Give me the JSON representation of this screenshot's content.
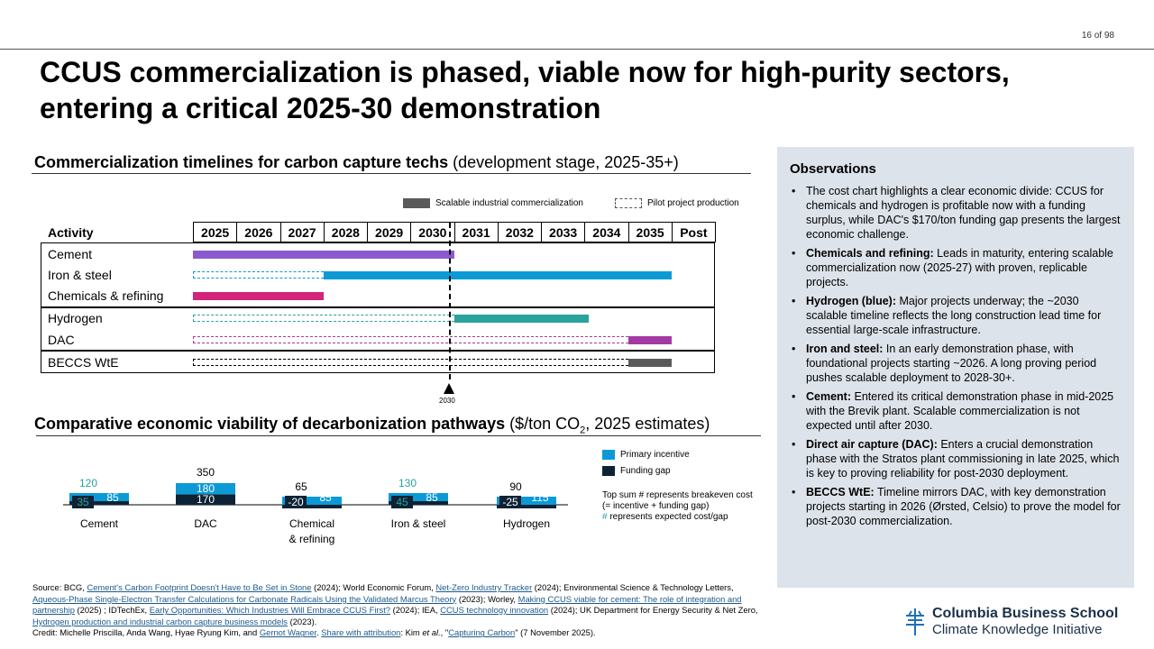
{
  "page": {
    "number": "16 of 98"
  },
  "title": "CCUS commercialization is phased, viable now for high-purity sectors, entering a critical 2025-30 demonstration",
  "timeline": {
    "heading": "Commercialization timelines for carbon capture techs",
    "subheading": " (development stage, 2025-35+)",
    "legend": {
      "scalable": "Scalable industrial commercialization",
      "pilot": "Pilot project production"
    },
    "activity_header": "Activity",
    "years": [
      "2025",
      "2026",
      "2027",
      "2028",
      "2029",
      "2030",
      "2031",
      "2032",
      "2033",
      "2034",
      "2035",
      "Post"
    ],
    "rows": [
      {
        "label": "Cement",
        "color": "#8c5ad0",
        "pilot": null,
        "scalable": [
          2025,
          2031
        ]
      },
      {
        "label": "Iron & steel",
        "color": "#0c9ad6",
        "pilot": [
          2025,
          2028
        ],
        "scalable": [
          2028,
          2036
        ]
      },
      {
        "label": "Chemicals & refining",
        "color": "#d4237a",
        "pilot": null,
        "scalable": [
          2025,
          2028
        ]
      },
      {
        "label": "Hydrogen",
        "color": "#2aa39a",
        "pilot": [
          2025,
          2031
        ],
        "scalable": [
          2031,
          2034.1
        ]
      },
      {
        "label": "DAC",
        "color": "#a33aa3",
        "pilot": [
          2025,
          2035
        ],
        "scalable": [
          2035,
          2036
        ]
      },
      {
        "label": "BECCS WtE",
        "color": "#5a5a5a",
        "pilot": [
          2025,
          2035
        ],
        "scalable": [
          2035,
          2036
        ]
      }
    ],
    "marker_label": "2030"
  },
  "economics": {
    "heading": "Comparative economic viability of decarbonization pathways",
    "subheading_pre": " ($/ton CO",
    "subheading_sub": "2",
    "subheading_post": ", 2025 estimates)",
    "legend": {
      "primary": "Primary incentive",
      "gap": "Funding gap"
    },
    "note_line1": "Top sum # represents breakeven cost (= incentive + funding gap)",
    "note_hash": "#",
    "note_line2": " represents expected cost/gap",
    "colors": {
      "primary": "#0c9ad6",
      "gap": "#0d2235",
      "teal": "#2aa39a"
    }
  },
  "chart_data": {
    "type": "bar",
    "categories": [
      "Cement",
      "DAC",
      "Chemical & refining",
      "Iron & steel",
      "Hydrogen"
    ],
    "series": [
      {
        "name": "Primary incentive",
        "values": [
          85,
          180,
          85,
          85,
          115
        ]
      },
      {
        "name": "Funding gap",
        "values": [
          35,
          170,
          -20,
          45,
          -25
        ]
      }
    ],
    "totals": [
      120,
      350,
      65,
      130,
      90
    ],
    "expected_cost_categories": [
      "Cement",
      "Iron & steel"
    ],
    "ylabel": "",
    "legend": "right"
  },
  "observations": {
    "title": "Observations",
    "items": [
      {
        "bold": "",
        "text": "The cost chart highlights a clear economic divide: CCUS for chemicals and hydrogen is profitable now with a funding surplus, while DAC's $170/ton funding gap presents the largest economic challenge."
      },
      {
        "bold": "Chemicals and refining:",
        "text": " Leads in maturity, entering scalable commercialization now (2025-27) with proven, replicable projects."
      },
      {
        "bold": "Hydrogen (blue):",
        "text": " Major projects underway; the ~2030 scalable timeline reflects the long construction lead time for essential large-scale infrastructure."
      },
      {
        "bold": "Iron and steel:",
        "text": " In an early demonstration phase, with foundational projects starting ~2026. A long proving period pushes scalable deployment to 2028-30+."
      },
      {
        "bold": "Cement:",
        "text": " Entered its critical demonstration phase in mid-2025 with the Brevik plant. Scalable commercialization is not expected until after 2030."
      },
      {
        "bold": "Direct air capture (DAC):",
        "text": " Enters a crucial demonstration phase with the Stratos plant commissioning in late 2025, which is key to proving reliability for post-2030 deployment."
      },
      {
        "bold": "BECCS WtE:",
        "text": " Timeline mirrors DAC, with key demonstration projects starting in 2026 (Ørsted, Celsio) to prove the model for post-2030 commercialization."
      }
    ]
  },
  "source": {
    "t1": "Source: BCG, ",
    "l1": "Cement's Carbon Footprint Doesn't Have to Be Set in Stone",
    "t2": " (2024); World Economic Forum, ",
    "l2": "Net-Zero Industry Tracker",
    "t3": " (2024); Environmental Science & Technology Letters, ",
    "l3": "Aqueous-Phase Single-Electron Transfer Calculations for Carbonate Radicals Using the Validated Marcus Theory",
    "t4": " (2023); Worley, ",
    "l4": "Making CCUS viable for cement: The role of integration and partnership",
    "t5": " (2025) ; IDTechEx, ",
    "l5": "Early Opportunities: Which Industries Will Embrace CCUS First?",
    "t6": " (2024); IEA, ",
    "l6": "CCUS technology innovation",
    "t7": " (2024); UK Department for Energy Security & Net Zero, ",
    "l7": "Hydrogen production and industrial carbon capture business models",
    "t8": " (2023).",
    "c1": "Credit: Michelle Priscilla, Anda Wang, Hyae Ryung Kim, and ",
    "cl1": "Gernot Wagner",
    "c2": ". ",
    "cl2": "Share with attribution",
    "c3": ": Kim ",
    "c3i": "et al.",
    "c4": ", \"",
    "cl3": "Capturing Carbon",
    "c5": "\" (7 November 2025)."
  },
  "logo": {
    "line1": "Columbia Business School",
    "line2": "Climate Knowledge Initiative"
  }
}
